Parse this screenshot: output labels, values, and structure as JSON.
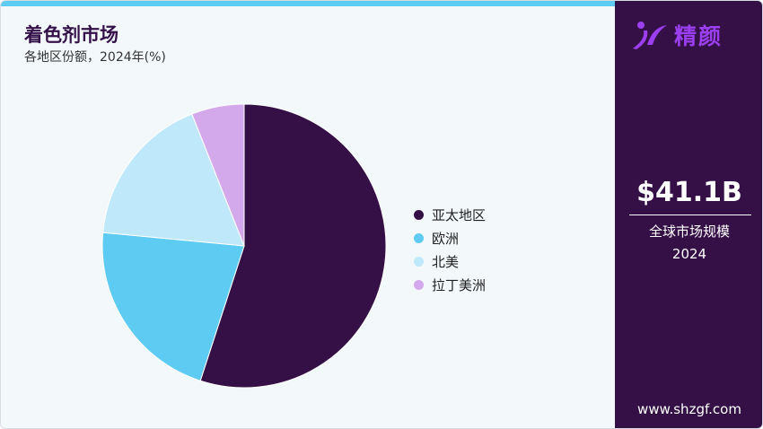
{
  "header": {
    "title": "着色剂市场",
    "subtitle": "各地区份额，2024年(%)"
  },
  "brand": {
    "logo_text": "精颜",
    "website": "www.shzgf.com"
  },
  "summary": {
    "value": "$41.1B",
    "label": "全球市场规模",
    "year": "2024"
  },
  "colors": {
    "accent": "#5ecbf3",
    "sidebar": "#351046"
  },
  "chart_data": {
    "type": "pie",
    "categories": [
      "亚太地区",
      "欧洲",
      "北美",
      "拉丁美洲"
    ],
    "values": [
      55,
      21.5,
      17.5,
      6
    ],
    "colors": [
      "#351046",
      "#5ecbf3",
      "#bfe9fa",
      "#d4a9ec"
    ],
    "legend": "right",
    "start": "top, clockwise"
  }
}
